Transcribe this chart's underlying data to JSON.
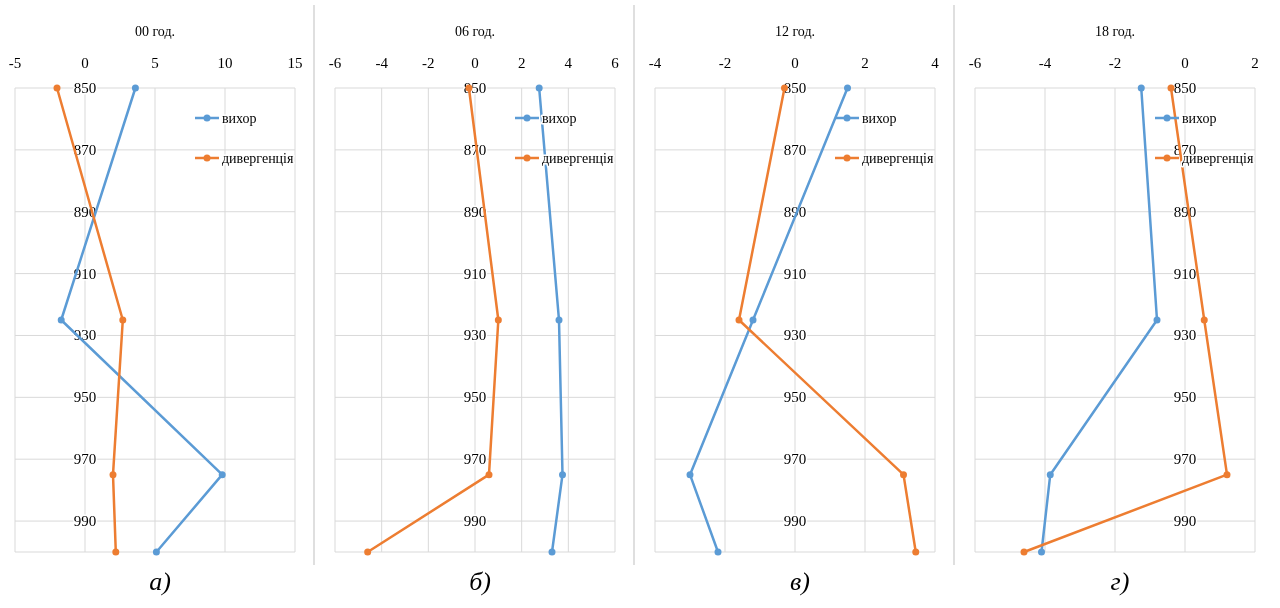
{
  "chart_data": [
    {
      "type": "line",
      "title": "00 год.",
      "xlim": [
        -5,
        15
      ],
      "xticks": [
        -5,
        0,
        5,
        10,
        15
      ],
      "ylim": [
        1000,
        850
      ],
      "yticks": [
        850,
        870,
        890,
        910,
        930,
        950,
        970,
        990
      ],
      "grid": true,
      "legend": "top right",
      "marker": "circle",
      "line_style": "solid",
      "annotations": [
        "а)"
      ],
      "series": [
        {
          "name": "вихор",
          "color": "#5b9bd5",
          "x": [
            3.6,
            -1.7,
            9.8,
            5.1
          ],
          "values": [
            850,
            925,
            975,
            1000
          ]
        },
        {
          "name": "дивергенція",
          "color": "#ed7d31",
          "x": [
            -2.0,
            2.7,
            2.0,
            2.2
          ],
          "values": [
            850,
            925,
            975,
            1000
          ]
        }
      ]
    },
    {
      "type": "line",
      "title": "06 год.",
      "xlim": [
        -6,
        6
      ],
      "xticks": [
        -6,
        -4,
        -2,
        0,
        2,
        4,
        6
      ],
      "ylim": [
        1000,
        850
      ],
      "yticks": [
        850,
        870,
        890,
        910,
        930,
        950,
        970,
        990
      ],
      "grid": true,
      "legend": "top right",
      "marker": "circle",
      "line_style": "solid",
      "annotations": [
        "б)"
      ],
      "series": [
        {
          "name": "вихор",
          "color": "#5b9bd5",
          "x": [
            2.75,
            3.6,
            3.75,
            3.3
          ],
          "values": [
            850,
            925,
            975,
            1000
          ]
        },
        {
          "name": "дивергенція",
          "color": "#ed7d31",
          "x": [
            -0.26,
            1.0,
            0.6,
            -4.6
          ],
          "values": [
            850,
            925,
            975,
            1000
          ]
        }
      ]
    },
    {
      "type": "line",
      "title": "12 год.",
      "xlim": [
        -4,
        4
      ],
      "xticks": [
        -4,
        -2,
        0,
        2,
        4
      ],
      "ylim": [
        1000,
        850
      ],
      "yticks": [
        850,
        870,
        890,
        910,
        930,
        950,
        970,
        990
      ],
      "grid": true,
      "legend": "top right",
      "marker": "circle",
      "line_style": "solid",
      "annotations": [
        "в)"
      ],
      "series": [
        {
          "name": "вихор",
          "color": "#5b9bd5",
          "x": [
            1.5,
            -1.2,
            -3.0,
            -2.2
          ],
          "values": [
            850,
            925,
            975,
            1000
          ]
        },
        {
          "name": "дивергенція",
          "color": "#ed7d31",
          "x": [
            -0.3,
            -1.6,
            3.1,
            3.45
          ],
          "values": [
            850,
            925,
            975,
            1000
          ]
        }
      ]
    },
    {
      "type": "line",
      "title": "18 год.",
      "xlim": [
        -6,
        2
      ],
      "xticks": [
        -6,
        -4,
        -2,
        0,
        2
      ],
      "ylim": [
        1000,
        850
      ],
      "yticks": [
        850,
        870,
        890,
        910,
        930,
        950,
        970,
        990
      ],
      "grid": true,
      "legend": "top right",
      "marker": "circle",
      "line_style": "solid",
      "annotations": [
        "г)"
      ],
      "series": [
        {
          "name": "вихор",
          "color": "#5b9bd5",
          "x": [
            -1.25,
            -0.8,
            -3.85,
            -4.1
          ],
          "values": [
            850,
            925,
            975,
            1000
          ]
        },
        {
          "name": "дивергенція",
          "color": "#ed7d31",
          "x": [
            -0.4,
            0.55,
            1.2,
            -4.6
          ],
          "values": [
            850,
            925,
            975,
            1000
          ]
        }
      ]
    }
  ]
}
